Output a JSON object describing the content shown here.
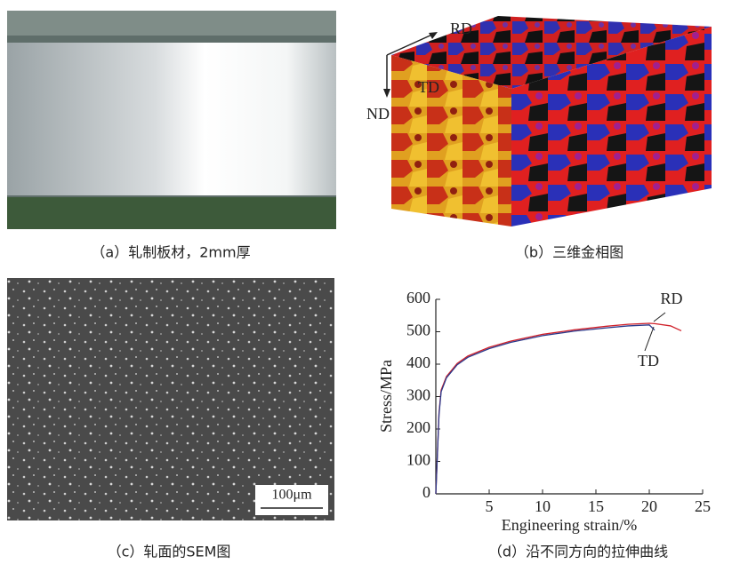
{
  "panels": {
    "a": {
      "caption": "（a）轧制板材，2mm厚"
    },
    "b": {
      "caption": "（b）三维金相图",
      "labels": [
        "RD",
        "TD",
        "ND"
      ]
    },
    "c": {
      "caption": "（c）轧面的SEM图",
      "scale_bar": "100μm"
    },
    "d": {
      "caption": "（d）沿不同方向的拉伸曲线"
    }
  },
  "chart_data": {
    "type": "line",
    "xlabel": "Engineering strain/%",
    "ylabel": "Stress/MPa",
    "x": [
      0,
      0.3,
      0.5,
      1,
      2,
      3,
      5,
      7,
      10,
      13,
      16,
      18,
      20,
      20.5,
      22,
      23
    ],
    "series": [
      {
        "name": "RD",
        "color": "#d0202a",
        "values": [
          0,
          250,
          320,
          362,
          402,
          425,
          452,
          471,
          492,
          506,
          517,
          523,
          526,
          525,
          518,
          503
        ]
      },
      {
        "name": "TD",
        "color": "#2b3a8c",
        "values": [
          0,
          245,
          315,
          358,
          398,
          421,
          448,
          467,
          488,
          502,
          512,
          518,
          521,
          505,
          null,
          null
        ]
      }
    ],
    "xlim": [
      0,
      25
    ],
    "xticks": [
      5,
      10,
      15,
      20,
      25
    ],
    "ylim": [
      0,
      600
    ],
    "yticks": [
      0,
      100,
      200,
      300,
      400,
      500,
      600
    ]
  }
}
